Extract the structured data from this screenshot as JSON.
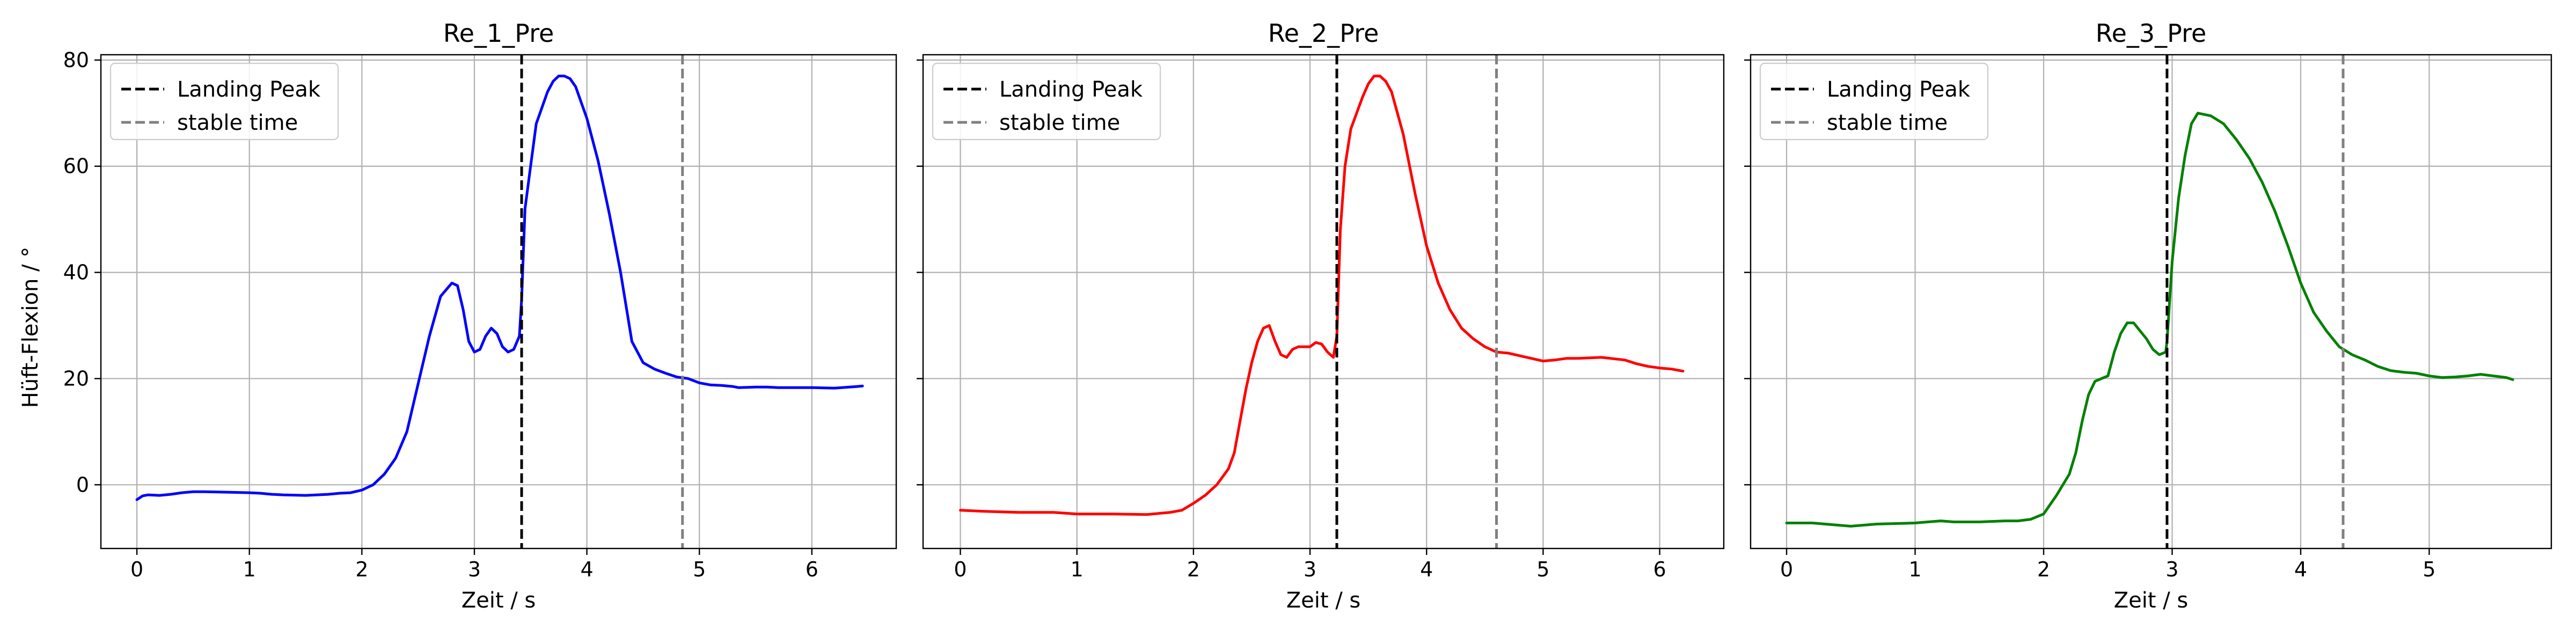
{
  "figure": {
    "ylabel": "Hüft-Flexion / °",
    "xlabel": "Zeit / s"
  },
  "legend": {
    "landing_label": "Landing Peak",
    "stable_label": "stable time",
    "placement": "top-left"
  },
  "colors": {
    "landing_line": "#000000",
    "stable_line": "#808080",
    "grid": "#b0b0b0"
  },
  "chart_data": [
    {
      "type": "line",
      "title": "Re_1_Pre",
      "xlabel": "Zeit / s",
      "ylabel": "Hüft-Flexion / °",
      "xlim": [
        -0.32,
        6.75
      ],
      "ylim": [
        -12,
        81
      ],
      "xticks": [
        0,
        1,
        2,
        3,
        4,
        5,
        6
      ],
      "yticks": [
        0,
        20,
        40,
        60,
        80
      ],
      "grid": true,
      "landing_peak": 3.42,
      "stable_time": 4.85,
      "series": [
        {
          "color": "#0000ff",
          "points": [
            [
              0,
              -2.8
            ],
            [
              0.05,
              -2.1
            ],
            [
              0.1,
              -1.9
            ],
            [
              0.2,
              -2.0
            ],
            [
              0.3,
              -1.8
            ],
            [
              0.4,
              -1.5
            ],
            [
              0.5,
              -1.3
            ],
            [
              0.6,
              -1.3
            ],
            [
              0.8,
              -1.4
            ],
            [
              1.0,
              -1.5
            ],
            [
              1.1,
              -1.6
            ],
            [
              1.2,
              -1.8
            ],
            [
              1.3,
              -1.9
            ],
            [
              1.5,
              -2.0
            ],
            [
              1.7,
              -1.8
            ],
            [
              1.8,
              -1.6
            ],
            [
              1.9,
              -1.5
            ],
            [
              2.0,
              -1.0
            ],
            [
              2.1,
              0.0
            ],
            [
              2.2,
              2.0
            ],
            [
              2.3,
              5.0
            ],
            [
              2.4,
              10.0
            ],
            [
              2.5,
              19.0
            ],
            [
              2.6,
              28.0
            ],
            [
              2.7,
              35.5
            ],
            [
              2.8,
              38.0
            ],
            [
              2.85,
              37.5
            ],
            [
              2.9,
              33.0
            ],
            [
              2.95,
              27.0
            ],
            [
              3.0,
              25.0
            ],
            [
              3.05,
              25.5
            ],
            [
              3.1,
              28.0
            ],
            [
              3.15,
              29.5
            ],
            [
              3.2,
              28.5
            ],
            [
              3.25,
              26.0
            ],
            [
              3.3,
              25.0
            ],
            [
              3.35,
              25.5
            ],
            [
              3.4,
              28.0
            ],
            [
              3.42,
              35.0
            ],
            [
              3.45,
              52.0
            ],
            [
              3.5,
              60.0
            ],
            [
              3.55,
              68.0
            ],
            [
              3.6,
              71.0
            ],
            [
              3.65,
              74.0
            ],
            [
              3.7,
              76.0
            ],
            [
              3.75,
              77.0
            ],
            [
              3.8,
              77.0
            ],
            [
              3.85,
              76.5
            ],
            [
              3.9,
              75.0
            ],
            [
              4.0,
              69.0
            ],
            [
              4.1,
              61.0
            ],
            [
              4.2,
              51.0
            ],
            [
              4.3,
              40.0
            ],
            [
              4.4,
              27.0
            ],
            [
              4.5,
              23.0
            ],
            [
              4.6,
              21.8
            ],
            [
              4.7,
              21.0
            ],
            [
              4.8,
              20.3
            ],
            [
              4.9,
              20.0
            ],
            [
              5.0,
              19.2
            ],
            [
              5.1,
              18.8
            ],
            [
              5.2,
              18.7
            ],
            [
              5.3,
              18.5
            ],
            [
              5.35,
              18.3
            ],
            [
              5.5,
              18.4
            ],
            [
              5.6,
              18.4
            ],
            [
              5.7,
              18.3
            ],
            [
              6.0,
              18.3
            ],
            [
              6.2,
              18.2
            ],
            [
              6.4,
              18.5
            ],
            [
              6.45,
              18.6
            ]
          ]
        }
      ]
    },
    {
      "type": "line",
      "title": "Re_2_Pre",
      "xlabel": "Zeit / s",
      "ylabel": "Hüft-Flexion / °",
      "xlim": [
        -0.32,
        6.55
      ],
      "ylim": [
        -12,
        81
      ],
      "xticks": [
        0,
        1,
        2,
        3,
        4,
        5,
        6
      ],
      "yticks": [
        0,
        20,
        40,
        60,
        80
      ],
      "grid": true,
      "landing_peak": 3.23,
      "stable_time": 4.6,
      "series": [
        {
          "color": "#ff0000",
          "points": [
            [
              0,
              -4.8
            ],
            [
              0.2,
              -5.0
            ],
            [
              0.5,
              -5.2
            ],
            [
              0.8,
              -5.2
            ],
            [
              1.0,
              -5.5
            ],
            [
              1.3,
              -5.5
            ],
            [
              1.6,
              -5.6
            ],
            [
              1.8,
              -5.2
            ],
            [
              1.9,
              -4.8
            ],
            [
              2.0,
              -3.5
            ],
            [
              2.1,
              -2.0
            ],
            [
              2.2,
              0.0
            ],
            [
              2.3,
              3.0
            ],
            [
              2.35,
              6.0
            ],
            [
              2.4,
              12.0
            ],
            [
              2.45,
              18.0
            ],
            [
              2.5,
              23.0
            ],
            [
              2.55,
              27.0
            ],
            [
              2.6,
              29.5
            ],
            [
              2.65,
              30.0
            ],
            [
              2.7,
              27.0
            ],
            [
              2.75,
              24.5
            ],
            [
              2.8,
              24.0
            ],
            [
              2.85,
              25.5
            ],
            [
              2.9,
              26.0
            ],
            [
              2.95,
              26.0
            ],
            [
              3.0,
              26.0
            ],
            [
              3.05,
              26.8
            ],
            [
              3.1,
              26.5
            ],
            [
              3.15,
              25.0
            ],
            [
              3.2,
              24.0
            ],
            [
              3.23,
              28.0
            ],
            [
              3.26,
              48.0
            ],
            [
              3.3,
              60.0
            ],
            [
              3.35,
              67.0
            ],
            [
              3.4,
              70.0
            ],
            [
              3.45,
              73.0
            ],
            [
              3.5,
              75.5
            ],
            [
              3.55,
              77.0
            ],
            [
              3.6,
              77.0
            ],
            [
              3.65,
              76.0
            ],
            [
              3.7,
              74.0
            ],
            [
              3.8,
              66.0
            ],
            [
              3.9,
              55.0
            ],
            [
              4.0,
              45.0
            ],
            [
              4.1,
              38.0
            ],
            [
              4.2,
              33.0
            ],
            [
              4.3,
              29.5
            ],
            [
              4.4,
              27.5
            ],
            [
              4.5,
              26.0
            ],
            [
              4.6,
              25.0
            ],
            [
              4.7,
              24.8
            ],
            [
              4.8,
              24.3
            ],
            [
              4.9,
              23.8
            ],
            [
              5.0,
              23.3
            ],
            [
              5.1,
              23.5
            ],
            [
              5.2,
              23.8
            ],
            [
              5.3,
              23.8
            ],
            [
              5.5,
              24.0
            ],
            [
              5.7,
              23.5
            ],
            [
              5.8,
              22.8
            ],
            [
              5.9,
              22.3
            ],
            [
              6.0,
              22.0
            ],
            [
              6.1,
              21.8
            ],
            [
              6.2,
              21.4
            ]
          ]
        }
      ]
    },
    {
      "type": "line",
      "title": "Re_3_Pre",
      "xlabel": "Zeit / s",
      "ylabel": "Hüft-Flexion / °",
      "xlim": [
        -0.28,
        5.95
      ],
      "ylim": [
        -12,
        81
      ],
      "xticks": [
        0,
        1,
        2,
        3,
        4,
        5
      ],
      "yticks": [
        0,
        20,
        40,
        60,
        80
      ],
      "grid": true,
      "landing_peak": 2.96,
      "stable_time": 4.33,
      "series": [
        {
          "color": "#008000",
          "points": [
            [
              0,
              -7.2
            ],
            [
              0.2,
              -7.2
            ],
            [
              0.3,
              -7.4
            ],
            [
              0.5,
              -7.8
            ],
            [
              0.7,
              -7.4
            ],
            [
              1.0,
              -7.2
            ],
            [
              1.1,
              -7.0
            ],
            [
              1.2,
              -6.8
            ],
            [
              1.3,
              -7.0
            ],
            [
              1.5,
              -7.0
            ],
            [
              1.7,
              -6.8
            ],
            [
              1.8,
              -6.8
            ],
            [
              1.9,
              -6.5
            ],
            [
              2.0,
              -5.5
            ],
            [
              2.1,
              -2.0
            ],
            [
              2.2,
              2.0
            ],
            [
              2.25,
              6.0
            ],
            [
              2.3,
              12.0
            ],
            [
              2.35,
              17.0
            ],
            [
              2.4,
              19.5
            ],
            [
              2.45,
              20.0
            ],
            [
              2.5,
              20.5
            ],
            [
              2.55,
              25.0
            ],
            [
              2.6,
              28.5
            ],
            [
              2.65,
              30.5
            ],
            [
              2.7,
              30.5
            ],
            [
              2.75,
              29.0
            ],
            [
              2.8,
              27.5
            ],
            [
              2.85,
              25.5
            ],
            [
              2.9,
              24.5
            ],
            [
              2.95,
              25.0
            ],
            [
              2.96,
              27.0
            ],
            [
              3.0,
              42.0
            ],
            [
              3.05,
              54.0
            ],
            [
              3.1,
              62.0
            ],
            [
              3.15,
              68.0
            ],
            [
              3.2,
              70.0
            ],
            [
              3.3,
              69.5
            ],
            [
              3.4,
              68.0
            ],
            [
              3.5,
              65.0
            ],
            [
              3.6,
              61.5
            ],
            [
              3.7,
              57.0
            ],
            [
              3.8,
              51.5
            ],
            [
              3.9,
              45.0
            ],
            [
              4.0,
              38.0
            ],
            [
              4.1,
              32.5
            ],
            [
              4.2,
              29.0
            ],
            [
              4.3,
              26.0
            ],
            [
              4.4,
              24.5
            ],
            [
              4.5,
              23.5
            ],
            [
              4.6,
              22.3
            ],
            [
              4.7,
              21.5
            ],
            [
              4.8,
              21.2
            ],
            [
              4.9,
              21.0
            ],
            [
              5.0,
              20.5
            ],
            [
              5.1,
              20.2
            ],
            [
              5.2,
              20.3
            ],
            [
              5.3,
              20.5
            ],
            [
              5.4,
              20.8
            ],
            [
              5.5,
              20.5
            ],
            [
              5.6,
              20.2
            ],
            [
              5.65,
              19.8
            ]
          ]
        }
      ]
    }
  ]
}
